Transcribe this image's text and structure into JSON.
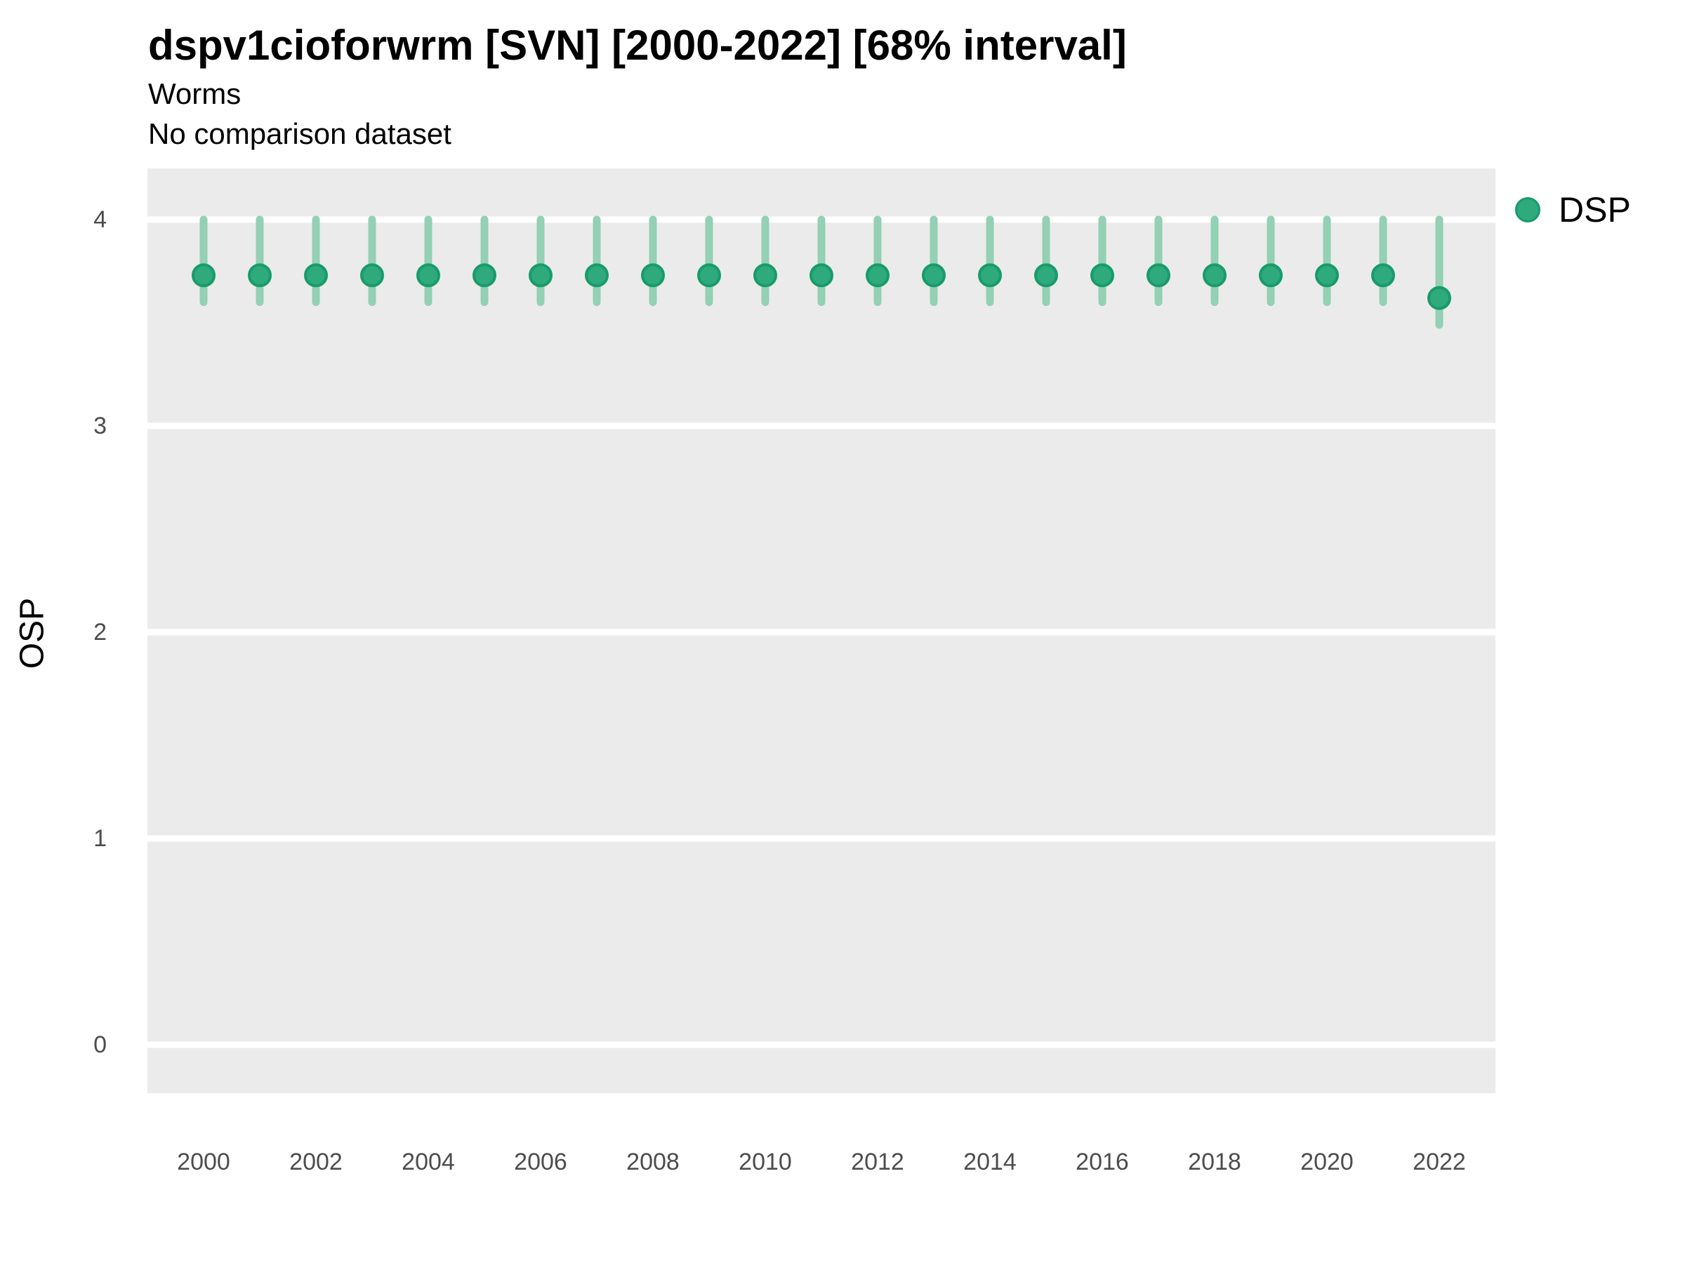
{
  "header": {
    "title": "dspv1cioforwrm [SVN] [2000-2022] [68% interval]",
    "subtitle": "Worms",
    "comparison_note": "No comparison dataset"
  },
  "chart_data": {
    "type": "scatter",
    "variant": "pointrange",
    "title": "dspv1cioforwrm [SVN] [2000-2022] [68% interval]",
    "subtitle": "Worms",
    "note": "No comparison dataset",
    "interval_label": "68% interval",
    "xlabel": "",
    "ylabel": "OSP",
    "ylim": [
      -0.23,
      4.25
    ],
    "xlim": [
      1999.5,
      2022.5
    ],
    "y_ticks": [
      0,
      1,
      2,
      3,
      4
    ],
    "x_ticks": [
      2000,
      2002,
      2004,
      2006,
      2008,
      2010,
      2012,
      2014,
      2016,
      2018,
      2020,
      2022
    ],
    "grid": "major-horizontal-white-lines-on-gray-panel",
    "legend": {
      "position": "right-top",
      "entries": [
        {
          "label": "DSP",
          "marker": "circle"
        }
      ]
    },
    "series": [
      {
        "name": "DSP",
        "x": [
          2000,
          2001,
          2002,
          2003,
          2004,
          2005,
          2006,
          2007,
          2008,
          2009,
          2010,
          2011,
          2012,
          2013,
          2014,
          2015,
          2016,
          2017,
          2018,
          2019,
          2020,
          2021,
          2022
        ],
        "y": [
          3.73,
          3.73,
          3.73,
          3.73,
          3.73,
          3.73,
          3.73,
          3.73,
          3.73,
          3.73,
          3.73,
          3.73,
          3.73,
          3.73,
          3.73,
          3.73,
          3.73,
          3.73,
          3.73,
          3.73,
          3.73,
          3.73,
          3.62
        ],
        "y_lower": [
          3.6,
          3.6,
          3.6,
          3.6,
          3.6,
          3.6,
          3.6,
          3.6,
          3.6,
          3.6,
          3.6,
          3.6,
          3.6,
          3.6,
          3.6,
          3.6,
          3.6,
          3.6,
          3.6,
          3.6,
          3.6,
          3.6,
          3.49
        ],
        "y_upper": [
          4.0,
          4.0,
          4.0,
          4.0,
          4.0,
          4.0,
          4.0,
          4.0,
          4.0,
          4.0,
          4.0,
          4.0,
          4.0,
          4.0,
          4.0,
          4.0,
          4.0,
          4.0,
          4.0,
          4.0,
          4.0,
          4.0,
          4.0
        ]
      }
    ]
  },
  "colors": {
    "point_fill": "#2eaa7d",
    "point_stroke": "#189b6c",
    "interval_line": "#93d0b5",
    "panel_bg": "#ebebeb",
    "gridline": "#ffffff",
    "axis_text": "#4d4d4d",
    "title_text": "#000000"
  }
}
